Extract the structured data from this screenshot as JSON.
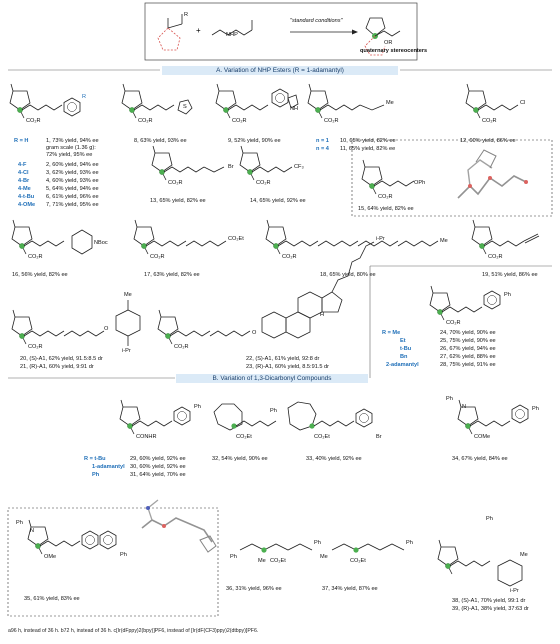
{
  "scheme": {
    "arrow_label": "\"standard conditions\"",
    "product_label": "quaternary stereocenters",
    "reagent_nhp": "NHP"
  },
  "sections": {
    "a": "A. Variation of NHP Esters (R = 1-adamantyl)",
    "b": "B. Variation of 1,3-Dicarbonyl Compounds"
  },
  "group_aryl": {
    "r_head": "R = H",
    "h_lines": [
      "1, 73% yield, 94% ee",
      "gram scale (1.36 g):",
      "72% yield, 95% ee"
    ],
    "variants": [
      {
        "sub": "4-F",
        "text": "2, 60% yield, 94% ee"
      },
      {
        "sub": "4-Cl",
        "text": "3, 62% yield, 93% ee"
      },
      {
        "sub": "4-Br",
        "text": "4, 60% yield, 93% ee"
      },
      {
        "sub": "4-Me",
        "text": "5, 64% yield, 94% ee"
      },
      {
        "sub": "4-t-Bu",
        "text": "6, 61% yield, 96% ee"
      },
      {
        "sub": "4-OMe",
        "text": "7, 71% yield, 95% ee"
      }
    ]
  },
  "group_chain": [
    {
      "n": "n = 1",
      "text": "10, 65% yield, 82% ee"
    },
    {
      "n": "n = 4",
      "text": "11, 65% yield, 82% ee"
    }
  ],
  "group_ester": [
    {
      "r": "R = Me",
      "text": "24, 70% yield, 90% ee"
    },
    {
      "r": "Et",
      "text": "25, 75% yield, 90% ee"
    },
    {
      "r": "t-Bu",
      "text": "26, 67% yield, 94% ee"
    },
    {
      "r": "Bn",
      "text": "27, 62% yield, 88% ee"
    },
    {
      "r": "2-adamantyl",
      "text": "28, 75% yield, 91% ee"
    }
  ],
  "group_amide": [
    {
      "r": "R = t-Bu",
      "text": "29, 60% yield, 92% ee"
    },
    {
      "r": "1-adamantyl",
      "text": "30, 60% yield, 92% ee"
    },
    {
      "r": "Ph",
      "text": "31, 64% yield, 70% ee"
    }
  ],
  "captions": {
    "c8": "8, 63% yield, 93% ee",
    "c9": "9, 52% yield, 90% ee",
    "c12": "12, 60% yield, 86% ee",
    "c13": "13, 65% yield, 82% ee",
    "c14": "14, 65% yield, 92% ee",
    "c15": "15, 64% yield, 82% ee",
    "c16": "16, 56% yield, 82% ee",
    "c17": "17, 63% yield, 82% ee",
    "c18": "18, 65% yield, 80% ee",
    "c19": "19, 51% yield, 86% ee",
    "c20": "20, (S)-A1, 62% yield, 91.5:8.5 dr",
    "c21": "21, (R)-A1, 60% yield, 9:91 dr",
    "c22": "22, (S)-A1, 61% yield, 92:8 dr",
    "c23": "23, (R)-A1, 60% yield, 8.5:91.5 dr",
    "c32": "32, 54% yield, 90% ee",
    "c33": "33, 40% yield, 92% ee",
    "c34": "34, 67% yield, 84% ee",
    "c35": "35, 61% yield, 83% ee",
    "c36": "36, 31% yield, 96% ee",
    "c37": "37, 34% yield, 87% ee",
    "c38": "38, (S)-A1, 70% yield, 99:1 dr",
    "c39": "39, (R)-A1, 38% yield, 37:63 dr"
  },
  "atoms": {
    "co2r": "CO₂R",
    "co2et": "CO₂Et",
    "conhr": "CONHR",
    "come": "COMe",
    "ome": "OMe",
    "me": "Me",
    "cl": "Cl",
    "br": "Br",
    "cf3": "CF₃",
    "oph": "OPh",
    "nboc": "NBoc",
    "nh": "NH",
    "s": "S",
    "ph": "Ph",
    "r": "R",
    "o": "O",
    "n": "N",
    "ipr": "i-Pr",
    "h": "H",
    "or": "OR"
  },
  "footnote": "a96 h, instead of 36 h. b72 h, instead of 36 h. c[Ir(dFppy)2(bpy)]PF6, instead of [Ir(dF(CF3)ppy)2(dtbpy)]PF6."
}
